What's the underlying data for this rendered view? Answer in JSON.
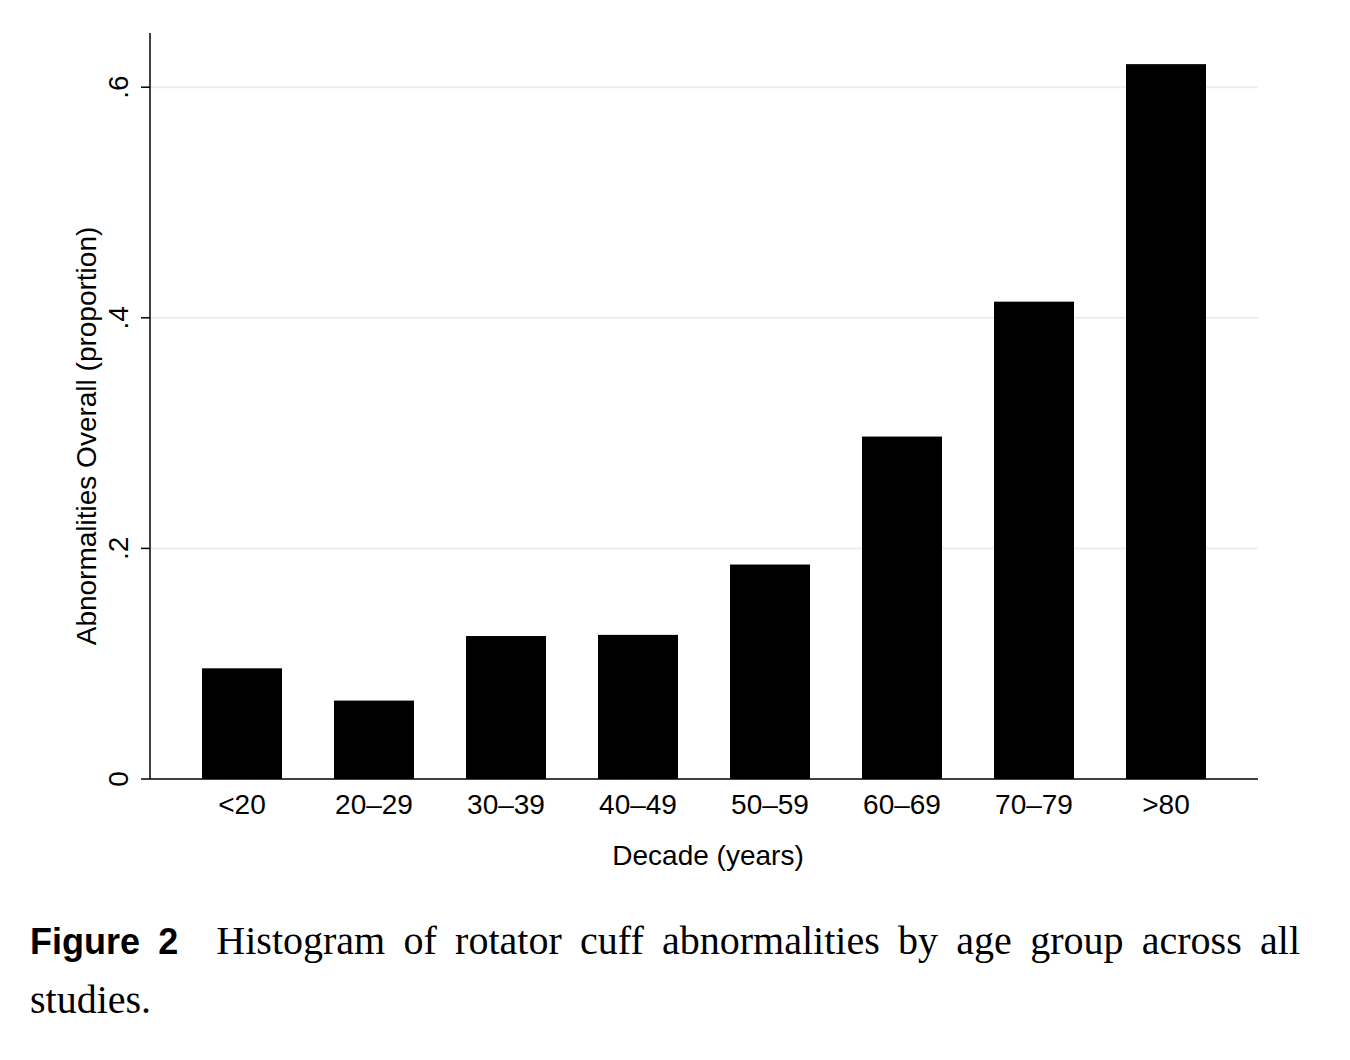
{
  "chart_data": {
    "type": "bar",
    "caption_label": "Figure 2",
    "caption": "Histogram of rotator cuff abnormalities by age group across all studies.",
    "x_label": "Decade (years)",
    "y_label": "Abnormalities Overall (proportion)",
    "categories": [
      "<20",
      "20–29",
      "30–39",
      "40–49",
      "50–59",
      "60–69",
      "70–79",
      ">80"
    ],
    "values": [
      0.096,
      0.068,
      0.124,
      0.125,
      0.186,
      0.297,
      0.414,
      0.62
    ],
    "color": "#000000",
    "ylim": [
      0,
      0.647
    ],
    "yticks": [
      0,
      {
        "value": 0.2,
        "label": ".2"
      },
      {
        "value": 0.4,
        "label": ".4"
      },
      {
        "value": 0.6,
        "label": ".6"
      }
    ],
    "grid": true
  }
}
